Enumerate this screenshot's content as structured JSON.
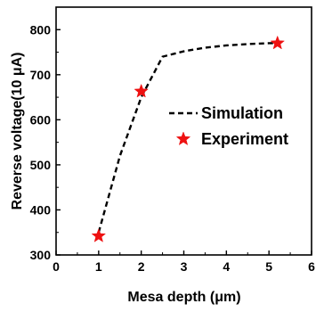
{
  "chart_data": {
    "type": "scatter",
    "xlabel": "Mesa depth (μm)",
    "ylabel": "Reverse voltage(10 μA)",
    "xlim": [
      0,
      6
    ],
    "ylim": [
      300,
      850
    ],
    "xticks": [
      "0",
      "1",
      "2",
      "3",
      "4",
      "5",
      "6"
    ],
    "yticks": [
      "300",
      "400",
      "500",
      "600",
      "700",
      "800"
    ],
    "grid": false,
    "legend_position": "center-right",
    "series": [
      {
        "name": "Simulation",
        "style": "dashed-line",
        "color": "#000000",
        "x": [
          1.0,
          1.5,
          2.0,
          2.5,
          3.0,
          3.5,
          4.0,
          4.5,
          5.0,
          5.2
        ],
        "y": [
          350,
          520,
          650,
          740,
          752,
          760,
          765,
          768,
          770,
          770
        ]
      },
      {
        "name": "Experiment",
        "style": "star-marker",
        "color": "#ee1111",
        "x": [
          1.0,
          2.0,
          5.2
        ],
        "y": [
          342,
          663,
          770
        ]
      }
    ]
  }
}
